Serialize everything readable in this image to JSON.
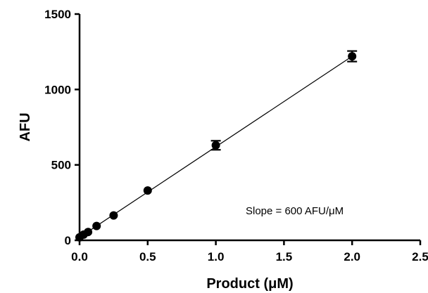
{
  "chart_data": {
    "type": "scatter",
    "xlabel": "Product (μM)",
    "ylabel": "AFU",
    "xlim": [
      0,
      2.5
    ],
    "ylim": [
      0,
      1500
    ],
    "xticks": [
      0.0,
      0.5,
      1.0,
      1.5,
      2.0,
      2.5
    ],
    "xtick_labels": [
      "0.0",
      "0.5",
      "1.0",
      "1.5",
      "2.0",
      "2.5"
    ],
    "yticks": [
      0,
      500,
      1000,
      1500
    ],
    "ytick_labels": [
      "0",
      "500",
      "1000",
      "1500"
    ],
    "grid": false,
    "annotation": "Slope = 600 AFU/μM",
    "series": [
      {
        "x": [
          0.0,
          0.03,
          0.0625,
          0.125,
          0.25,
          0.5,
          1.0,
          2.0
        ],
        "y": [
          20,
          38,
          55,
          95,
          165,
          330,
          630,
          1220
        ],
        "error": [
          0,
          0,
          0,
          0,
          0,
          0,
          30,
          35
        ],
        "marker": "circle",
        "color": "#000000"
      }
    ],
    "fit_line": {
      "x": [
        0.0,
        2.0
      ],
      "y": [
        20,
        1220
      ]
    }
  }
}
